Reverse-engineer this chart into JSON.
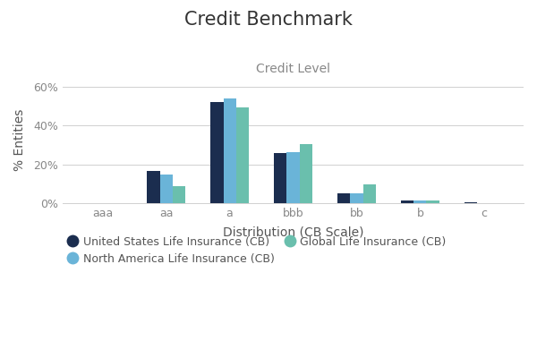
{
  "title": "Credit Benchmark",
  "subtitle": "Credit Level",
  "xlabel": "Distribution (CB Scale)",
  "ylabel": "% Entities",
  "categories": [
    "aaa",
    "aa",
    "a",
    "bbb",
    "bb",
    "b",
    "c"
  ],
  "series_order": [
    "United States Life Insurance (CB)",
    "North America Life Insurance (CB)",
    "Global Life Insurance (CB)"
  ],
  "series": {
    "United States Life Insurance (CB)": [
      0.0,
      0.165,
      0.525,
      0.26,
      0.05,
      0.012,
      0.005
    ],
    "North America Life Insurance (CB)": [
      0.0,
      0.145,
      0.54,
      0.265,
      0.05,
      0.012,
      0.0
    ],
    "Global Life Insurance (CB)": [
      0.0,
      0.085,
      0.495,
      0.305,
      0.095,
      0.013,
      0.0
    ]
  },
  "colors": {
    "United States Life Insurance (CB)": "#1b2d4f",
    "North America Life Insurance (CB)": "#6ab4d8",
    "Global Life Insurance (CB)": "#6abfad"
  },
  "ylim": [
    0,
    0.65
  ],
  "yticks": [
    0.0,
    0.2,
    0.4,
    0.6
  ],
  "ytick_labels": [
    "0%",
    "20%",
    "40%",
    "60%"
  ],
  "background_color": "#ffffff",
  "grid_color": "#d0d0d0",
  "title_fontsize": 15,
  "subtitle_fontsize": 10,
  "axis_label_fontsize": 10,
  "tick_fontsize": 9,
  "legend_fontsize": 9,
  "bar_width": 0.2,
  "tick_color": "#888888",
  "label_color": "#555555"
}
